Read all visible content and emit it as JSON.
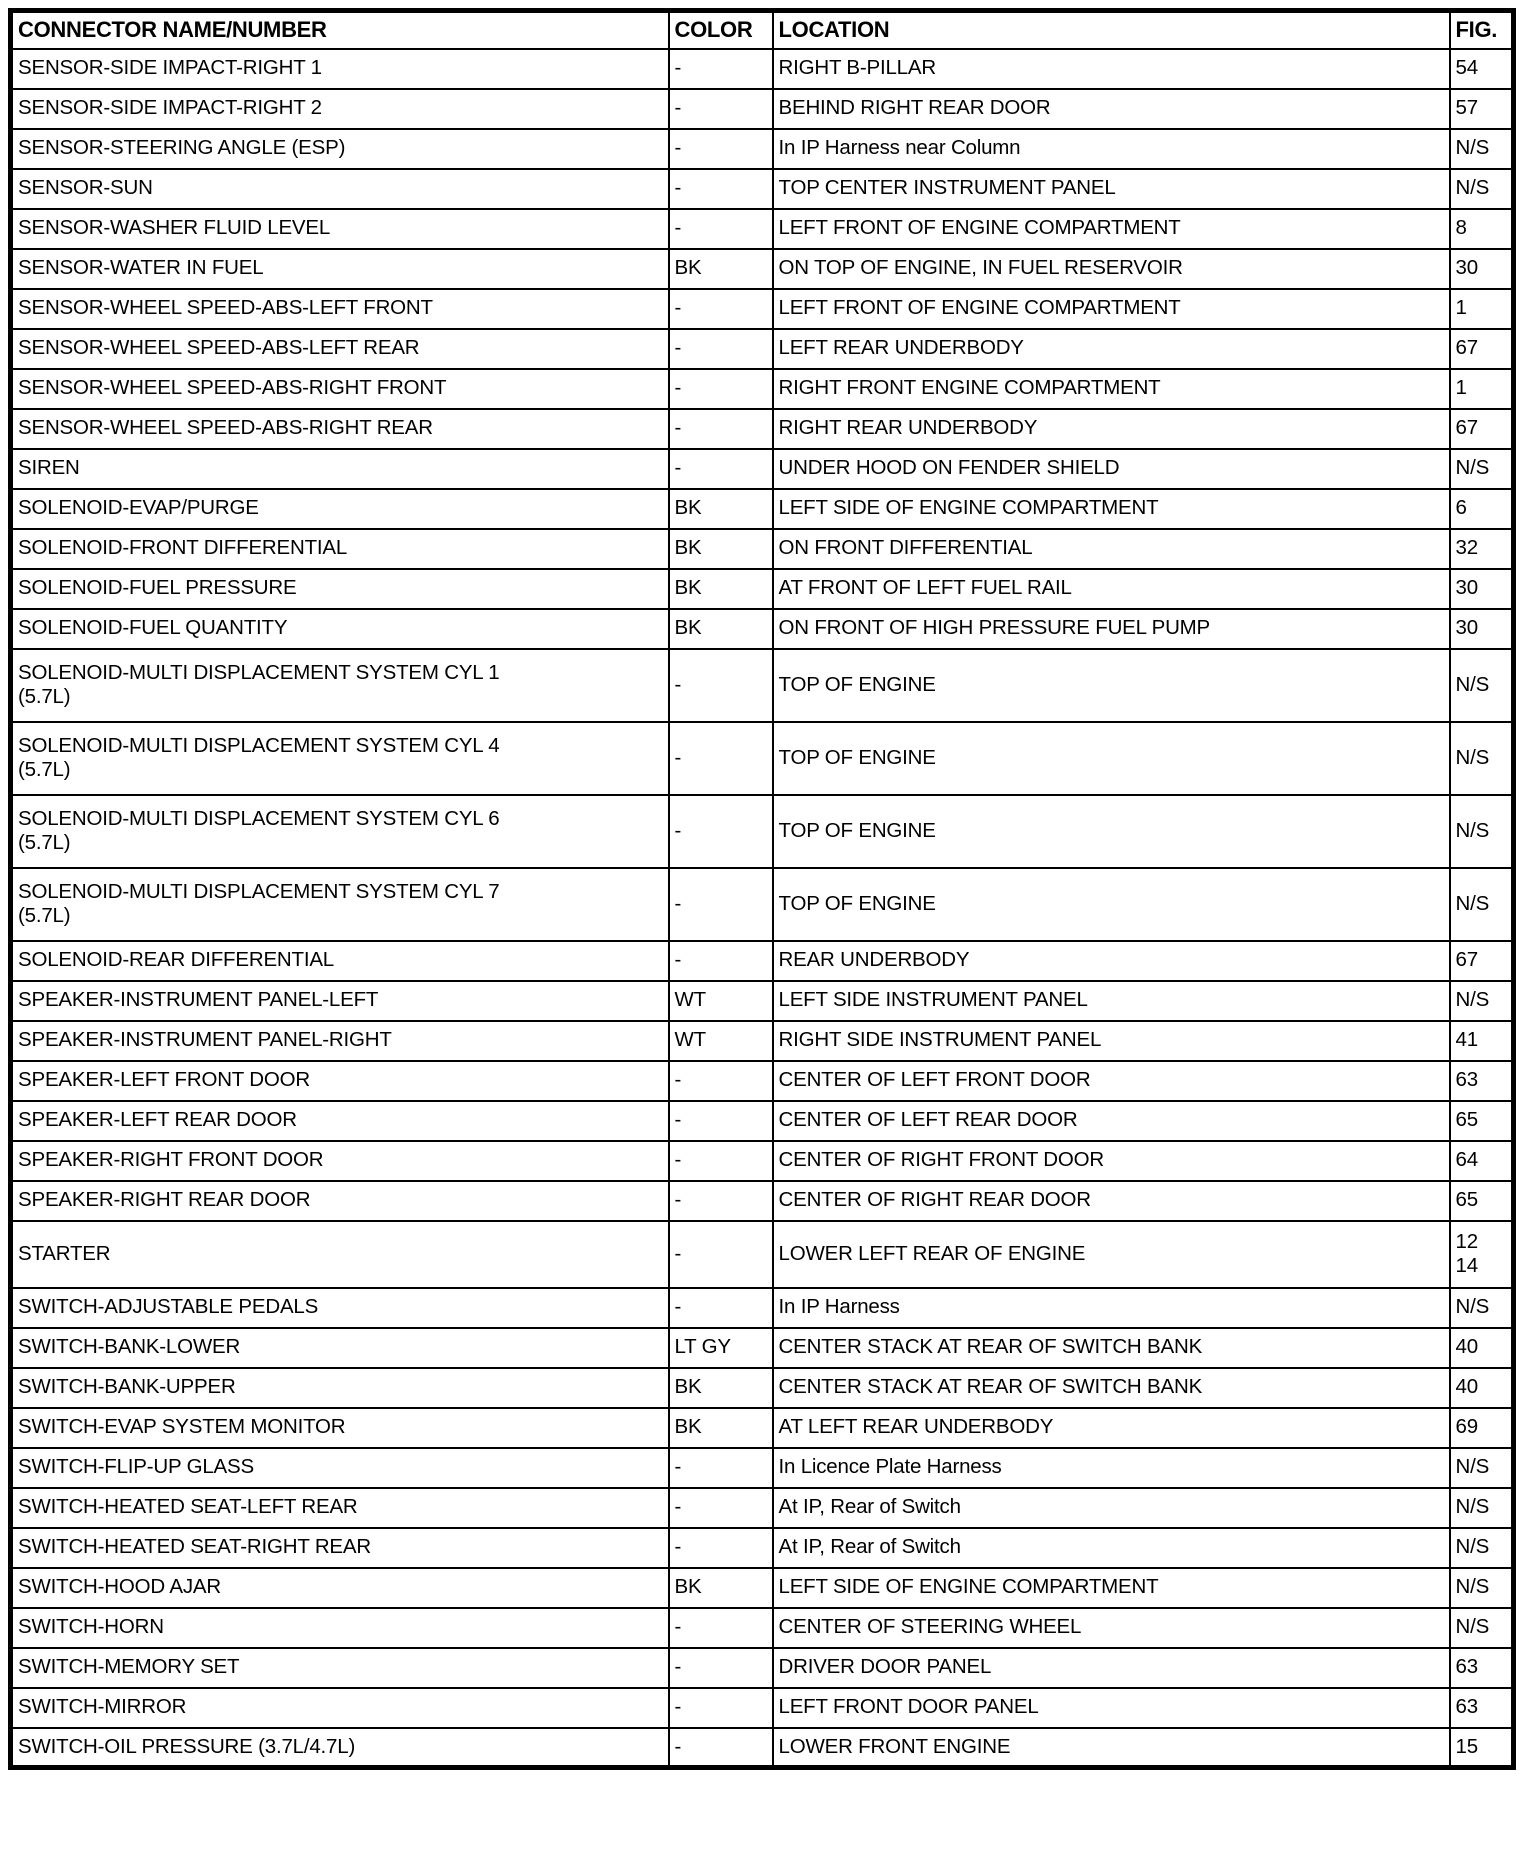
{
  "table": {
    "columns": [
      {
        "key": "name",
        "label": "CONNECTOR NAME/NUMBER"
      },
      {
        "key": "color",
        "label": "COLOR"
      },
      {
        "key": "location",
        "label": "LOCATION"
      },
      {
        "key": "fig",
        "label": "FIG."
      }
    ],
    "rows": [
      {
        "name": "SENSOR-SIDE IMPACT-RIGHT 1",
        "color": "-",
        "location": "RIGHT B-PILLAR",
        "fig": "54"
      },
      {
        "name": "SENSOR-SIDE IMPACT-RIGHT 2",
        "color": "-",
        "location": "BEHIND RIGHT REAR DOOR",
        "fig": "57"
      },
      {
        "name": "SENSOR-STEERING ANGLE (ESP)",
        "color": "-",
        "location": "In IP Harness near Column",
        "fig": "N/S"
      },
      {
        "name": "SENSOR-SUN",
        "color": "-",
        "location": "TOP CENTER INSTRUMENT PANEL",
        "fig": "N/S"
      },
      {
        "name": "SENSOR-WASHER FLUID LEVEL",
        "color": "-",
        "location": "LEFT FRONT OF ENGINE COMPARTMENT",
        "fig": "8"
      },
      {
        "name": "SENSOR-WATER IN FUEL",
        "color": "BK",
        "location": "ON TOP OF ENGINE, IN FUEL RESERVOIR",
        "fig": "30"
      },
      {
        "name": "SENSOR-WHEEL SPEED-ABS-LEFT FRONT",
        "color": "-",
        "location": "LEFT FRONT OF ENGINE COMPARTMENT",
        "fig": "1"
      },
      {
        "name": "SENSOR-WHEEL SPEED-ABS-LEFT REAR",
        "color": "-",
        "location": "LEFT REAR UNDERBODY",
        "fig": "67"
      },
      {
        "name": "SENSOR-WHEEL SPEED-ABS-RIGHT FRONT",
        "color": "-",
        "location": "RIGHT FRONT ENGINE COMPARTMENT",
        "fig": "1"
      },
      {
        "name": "SENSOR-WHEEL SPEED-ABS-RIGHT REAR",
        "color": "-",
        "location": "RIGHT REAR UNDERBODY",
        "fig": "67"
      },
      {
        "name": "SIREN",
        "color": "-",
        "location": "UNDER HOOD ON FENDER SHIELD",
        "fig": "N/S"
      },
      {
        "name": "SOLENOID-EVAP/PURGE",
        "color": "BK",
        "location": "LEFT SIDE OF ENGINE COMPARTMENT",
        "fig": "6"
      },
      {
        "name": "SOLENOID-FRONT DIFFERENTIAL",
        "color": "BK",
        "location": "ON FRONT DIFFERENTIAL",
        "fig": "32"
      },
      {
        "name": "SOLENOID-FUEL PRESSURE",
        "color": "BK",
        "location": "AT FRONT OF LEFT FUEL RAIL",
        "fig": "30"
      },
      {
        "name": "SOLENOID-FUEL QUANTITY",
        "color": "BK",
        "location": "ON FRONT OF HIGH PRESSURE FUEL PUMP",
        "fig": "30"
      },
      {
        "name": "SOLENOID-MULTI DISPLACEMENT SYSTEM CYL 1\n(5.7L)",
        "color": "-",
        "location": "TOP OF ENGINE",
        "fig": "N/S",
        "tall": true
      },
      {
        "name": "SOLENOID-MULTI DISPLACEMENT SYSTEM CYL 4\n(5.7L)",
        "color": "-",
        "location": "TOP OF ENGINE",
        "fig": "N/S",
        "tall": true
      },
      {
        "name": "SOLENOID-MULTI DISPLACEMENT SYSTEM CYL 6\n(5.7L)",
        "color": "-",
        "location": "TOP OF ENGINE",
        "fig": "N/S",
        "tall": true
      },
      {
        "name": "SOLENOID-MULTI DISPLACEMENT SYSTEM CYL 7\n(5.7L)",
        "color": "-",
        "location": "TOP OF ENGINE",
        "fig": "N/S",
        "tall": true
      },
      {
        "name": "SOLENOID-REAR DIFFERENTIAL",
        "color": "-",
        "location": "REAR UNDERBODY",
        "fig": "67"
      },
      {
        "name": "SPEAKER-INSTRUMENT PANEL-LEFT",
        "color": "WT",
        "location": "LEFT SIDE INSTRUMENT PANEL",
        "fig": "N/S"
      },
      {
        "name": "SPEAKER-INSTRUMENT PANEL-RIGHT",
        "color": "WT",
        "location": "RIGHT SIDE INSTRUMENT PANEL",
        "fig": "41"
      },
      {
        "name": "SPEAKER-LEFT FRONT DOOR",
        "color": "-",
        "location": "CENTER OF LEFT FRONT DOOR",
        "fig": "63"
      },
      {
        "name": "SPEAKER-LEFT REAR DOOR",
        "color": "-",
        "location": "CENTER OF LEFT REAR DOOR",
        "fig": "65"
      },
      {
        "name": "SPEAKER-RIGHT FRONT DOOR",
        "color": "-",
        "location": "CENTER OF RIGHT FRONT DOOR",
        "fig": "64"
      },
      {
        "name": "SPEAKER-RIGHT REAR DOOR",
        "color": "-",
        "location": "CENTER OF RIGHT REAR DOOR",
        "fig": "65"
      },
      {
        "name": "STARTER",
        "color": "-",
        "location": "LOWER LEFT REAR OF ENGINE",
        "fig": "12\n14",
        "tall_fig": true
      },
      {
        "name": "SWITCH-ADJUSTABLE PEDALS",
        "color": "-",
        "location": "In IP Harness",
        "fig": "N/S"
      },
      {
        "name": "SWITCH-BANK-LOWER",
        "color": "LT GY",
        "location": "CENTER STACK AT REAR OF SWITCH BANK",
        "fig": "40"
      },
      {
        "name": "SWITCH-BANK-UPPER",
        "color": "BK",
        "location": "CENTER STACK AT REAR OF SWITCH BANK",
        "fig": "40"
      },
      {
        "name": "SWITCH-EVAP SYSTEM MONITOR",
        "color": "BK",
        "location": "AT LEFT REAR UNDERBODY",
        "fig": "69"
      },
      {
        "name": "SWITCH-FLIP-UP GLASS",
        "color": "-",
        "location": "In Licence Plate Harness",
        "fig": "N/S"
      },
      {
        "name": "SWITCH-HEATED SEAT-LEFT REAR",
        "color": "-",
        "location": "At IP, Rear of Switch",
        "fig": "N/S"
      },
      {
        "name": "SWITCH-HEATED SEAT-RIGHT REAR",
        "color": "-",
        "location": "At IP, Rear of Switch",
        "fig": "N/S"
      },
      {
        "name": "SWITCH-HOOD AJAR",
        "color": "BK",
        "location": "LEFT SIDE OF ENGINE COMPARTMENT",
        "fig": "N/S"
      },
      {
        "name": "SWITCH-HORN",
        "color": "-",
        "location": "CENTER OF STEERING WHEEL",
        "fig": "N/S"
      },
      {
        "name": "SWITCH-MEMORY SET",
        "color": "-",
        "location": "DRIVER DOOR PANEL",
        "fig": "63"
      },
      {
        "name": "SWITCH-MIRROR",
        "color": "-",
        "location": "LEFT FRONT DOOR PANEL",
        "fig": "63"
      },
      {
        "name": "SWITCH-OIL PRESSURE (3.7L/4.7L)",
        "color": "-",
        "location": "LOWER FRONT ENGINE",
        "fig": "15"
      }
    ],
    "text_color": "#000000",
    "border_color": "#000000",
    "background_color": "#ffffff"
  }
}
